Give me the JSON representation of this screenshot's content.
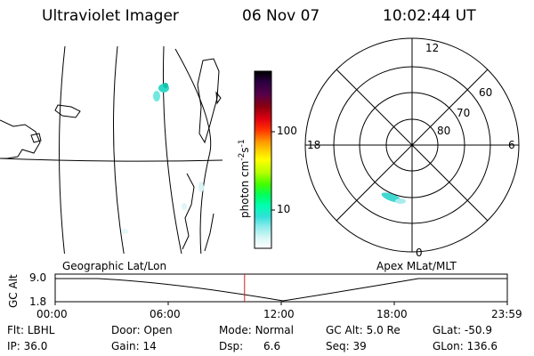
{
  "header": {
    "instrument": "Ultraviolet Imager",
    "date": "06 Nov 07",
    "time": "10:02:44 UT"
  },
  "colorbar": {
    "label": "photon cm",
    "label_sup1": "-2",
    "label_mid": "s",
    "label_sup2": "-1",
    "ticks": [
      "100",
      "10"
    ],
    "tick_values": [
      100,
      10
    ],
    "colors": [
      "#000000",
      "#2b0040",
      "#55004a",
      "#8a0010",
      "#c80010",
      "#ff0010",
      "#ff5a00",
      "#ff9a00",
      "#ffd000",
      "#ffff00",
      "#c8ff00",
      "#6cff00",
      "#00ff00",
      "#00ffa0",
      "#20f0d0",
      "#50e0e0",
      "#9af0f0",
      "#ffffff"
    ]
  },
  "polar": {
    "mlt_labels": [
      "12",
      "18",
      "6",
      "0"
    ],
    "lat_labels": [
      "60",
      "70",
      "80"
    ]
  },
  "timeline": {
    "left_title": "Geographic Lat/Lon",
    "right_title": "Apex MLat/MLT",
    "axis_label": "GC Alt",
    "y_ticks": [
      "9.0",
      "1.8"
    ],
    "x_ticks": [
      "00:00",
      "06:00",
      "12:00",
      "18:00",
      "23:59"
    ],
    "marker_time": "10:02:44",
    "marker_color": "#d02020"
  },
  "status": {
    "row1": [
      {
        "label": "Flt:",
        "value": "LBHL"
      },
      {
        "label": "Door:",
        "value": "Open"
      },
      {
        "label": "Mode:",
        "value": "Normal"
      },
      {
        "label": "GC Alt:",
        "value": "5.0 Re"
      },
      {
        "label": "GLat:",
        "value": "-50.9"
      }
    ],
    "row2": [
      {
        "label": "IP:",
        "value": "36.0"
      },
      {
        "label": "Gain:",
        "value": "14"
      },
      {
        "label": "Dsp:",
        "value": "6.6"
      },
      {
        "label": "Seq:",
        "value": "39"
      },
      {
        "label": "GLon:",
        "value": "136.6"
      }
    ]
  }
}
